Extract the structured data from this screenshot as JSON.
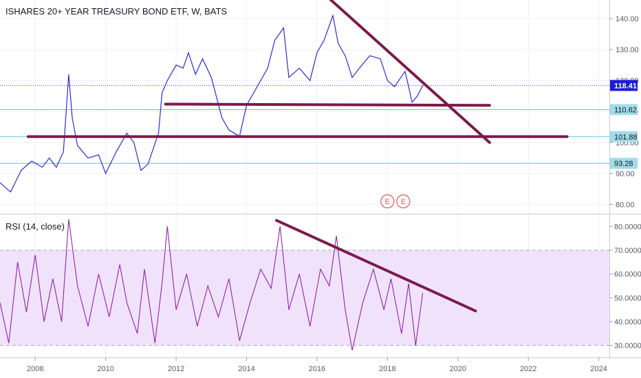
{
  "chart_data": [
    {
      "type": "line",
      "panel": "price",
      "title": "ISHARES 20+ YEAR TREASURY BOND ETF, W, BATS",
      "ylim": [
        77,
        146
      ],
      "y_ticks": [
        "140.00",
        "130.00",
        "120.00",
        "110.00",
        "100.00",
        "90.00",
        "80.00"
      ],
      "series_color": "#2b2bd9",
      "series": [
        {
          "values_x": [
            2007.0,
            2007.3,
            2007.6,
            2007.9,
            2008.2,
            2008.4,
            2008.6,
            2008.8,
            2008.95,
            2009.05,
            2009.2,
            2009.5,
            2009.8,
            2010.0,
            2010.3,
            2010.6,
            2010.8,
            2011.0,
            2011.2,
            2011.5,
            2011.6,
            2011.75,
            2012.0,
            2012.2,
            2012.35,
            2012.55,
            2012.75,
            2013.0,
            2013.3,
            2013.5,
            2013.8,
            2014.0,
            2014.3,
            2014.6,
            2014.8,
            2015.05,
            2015.2,
            2015.5,
            2015.8,
            2016.0,
            2016.2,
            2016.45,
            2016.6,
            2016.8,
            2017.0,
            2017.2,
            2017.5,
            2017.8,
            2018.0,
            2018.2,
            2018.5,
            2018.7,
            2018.85,
            2019.0
          ],
          "values_y": [
            87,
            84,
            91,
            94,
            92,
            95,
            92,
            97,
            122,
            108,
            99,
            95,
            96,
            90,
            97,
            103,
            100,
            91,
            93,
            103,
            116,
            120,
            125,
            124,
            129,
            122,
            127,
            121,
            108,
            104,
            102,
            112,
            118,
            124,
            133,
            137,
            121,
            124,
            120,
            129,
            133,
            141,
            132,
            128,
            121,
            124,
            128,
            127,
            120,
            118,
            123,
            113,
            115,
            118.41
          ]
        }
      ],
      "last_price": "118.41",
      "levels": [
        {
          "value": 118.41,
          "label": "118.41",
          "style": "dotted",
          "color": "#2a2ae0"
        },
        {
          "value": 110.62,
          "label": "110.62",
          "color": "#5ac8e0"
        },
        {
          "value": 101.88,
          "label": "101.88",
          "color": "#5ac8e0"
        },
        {
          "value": 93.28,
          "label": "93.28",
          "color": "#5ac8e0"
        }
      ],
      "drawn_lines": [
        {
          "x1": 2007.8,
          "y1": 101.9,
          "x2": 2023.1,
          "y2": 101.9
        },
        {
          "x1": 2011.7,
          "y1": 112.4,
          "x2": 2020.9,
          "y2": 112.0
        },
        {
          "x1": 2016.2,
          "y1": 148.0,
          "x2": 2020.9,
          "y2": 100.0
        }
      ],
      "earnings_badges": [
        {
          "x": 2018.0,
          "label": "E"
        },
        {
          "x": 2018.45,
          "label": "E"
        }
      ]
    },
    {
      "type": "line",
      "panel": "indicator",
      "title": "RSI (14, close)",
      "ylim": [
        25,
        85
      ],
      "y_ticks": [
        "80.0000",
        "70.0000",
        "60.0000",
        "50.0000",
        "40.0000",
        "30.0000"
      ],
      "band": [
        30,
        70
      ],
      "series_color": "#8e24aa",
      "series": [
        {
          "values_x": [
            2007.0,
            2007.25,
            2007.5,
            2007.75,
            2008.0,
            2008.25,
            2008.5,
            2008.75,
            2008.95,
            2009.2,
            2009.5,
            2009.8,
            2010.1,
            2010.4,
            2010.6,
            2010.9,
            2011.1,
            2011.4,
            2011.6,
            2011.75,
            2012.0,
            2012.3,
            2012.6,
            2012.9,
            2013.2,
            2013.5,
            2013.8,
            2014.1,
            2014.4,
            2014.7,
            2014.95,
            2015.2,
            2015.5,
            2015.8,
            2016.1,
            2016.35,
            2016.55,
            2016.8,
            2017.0,
            2017.3,
            2017.6,
            2017.9,
            2018.1,
            2018.4,
            2018.6,
            2018.8,
            2019.0
          ],
          "values_y": [
            48,
            31,
            65,
            44,
            68,
            40,
            58,
            40,
            83,
            55,
            38,
            60,
            42,
            64,
            48,
            35,
            62,
            31,
            56,
            80,
            45,
            60,
            38,
            55,
            42,
            58,
            32,
            48,
            62,
            54,
            80,
            45,
            60,
            38,
            62,
            55,
            76,
            45,
            28,
            48,
            62,
            45,
            58,
            35,
            56,
            30,
            52
          ]
        }
      ],
      "drawn_lines": [
        {
          "x1": 2014.85,
          "y1": 82.5,
          "x2": 2020.5,
          "y2": 44.5
        }
      ]
    }
  ],
  "x_axis": {
    "labels": [
      "2008",
      "2010",
      "2012",
      "2014",
      "2016",
      "2018",
      "2020",
      "2022",
      "2024"
    ],
    "values": [
      2008,
      2010,
      2012,
      2014,
      2016,
      2018,
      2020,
      2022,
      2024
    ],
    "xlim": [
      2007.0,
      2024.3
    ]
  },
  "colors": {
    "drawn_line": "#7b1b4a",
    "rsi_band_fill": "#f1e2fb",
    "grid": "#eef0f4",
    "badge": "#e0584f"
  }
}
